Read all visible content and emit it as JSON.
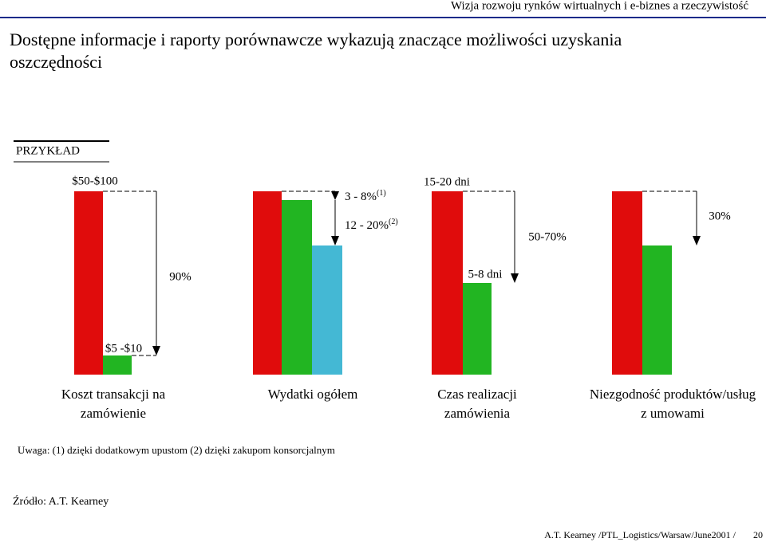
{
  "header": {
    "subtitle": "Wizja rozwoju rynków wirtualnych i e-biznes a rzeczywistość",
    "page": "20",
    "footer": "A.T. Kearney /PTL_Logistics/Warsaw/June2001 /"
  },
  "title": [
    "Dostępne informacje i raporty porównawcze wykazują  znaczące możliwości uzyskania",
    "oszczędności"
  ],
  "badge": "PRZYKŁAD",
  "groups": [
    {
      "labels": [
        "Koszt transakcji na",
        "zamówienie"
      ],
      "top": "$50-$100",
      "delta": "90%",
      "bottom": "$5 -$10"
    },
    {
      "labels": [
        "Wydatki ogółem"
      ],
      "first": "3 - 8%",
      "first_note": "(1)",
      "second": "12 - 20%",
      "second_note": "(2)"
    },
    {
      "labels": [
        "Czas realizacji",
        "zamówienia"
      ],
      "top": "15-20 dni",
      "delta": "50-70%",
      "bottom": "5-8 dni"
    },
    {
      "labels": [
        "Niezgodność produktów/usług",
        "z umowami"
      ],
      "delta": "30%"
    }
  ],
  "note": "Uwaga: (1) dzięki dodatkowym upustom  (2) dzięki zakupom konsorcjalnym",
  "source": "Źródło: A.T. Kearney"
}
